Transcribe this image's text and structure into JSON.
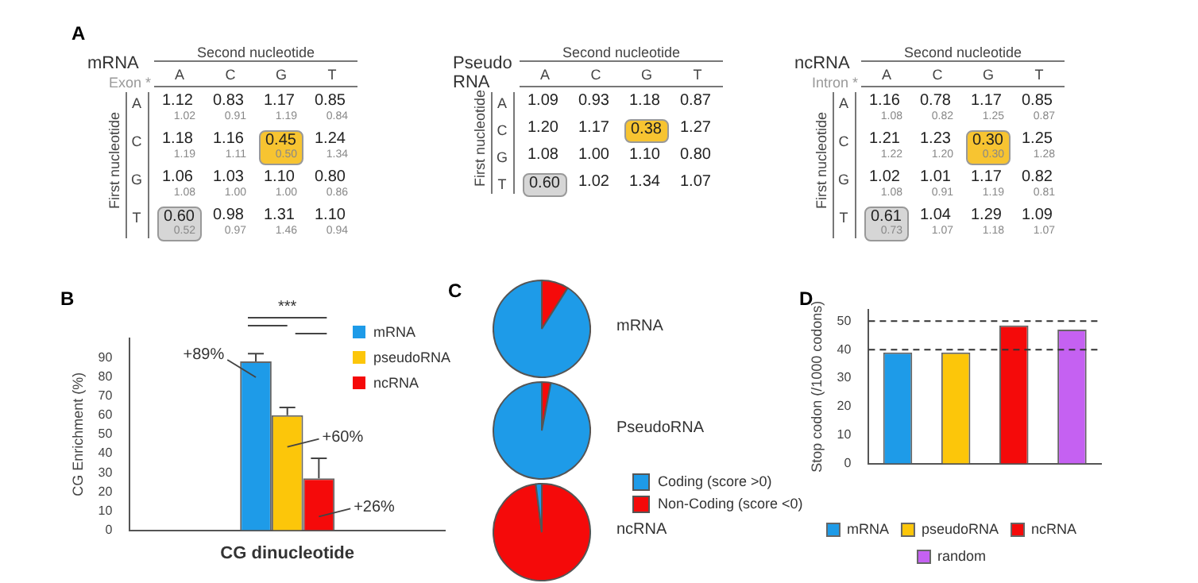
{
  "chart_data": [
    {
      "type": "heatmap",
      "title": "mRNA",
      "subtitle": "Exon *",
      "xlabel": "Second nucleotide",
      "ylabel": "First nucleotide",
      "annotations": [
        "A",
        "1.02",
        "0.91",
        "1.19",
        "0.84",
        "1.19",
        "1.11",
        "0.50",
        "1.34",
        "1.08",
        "1.00",
        "1.00",
        "0.86",
        "0.52",
        "0.97",
        "1.46",
        "0.94"
      ],
      "categories": [
        "A",
        "C",
        "G",
        "T"
      ],
      "y_categories": [
        "A",
        "C",
        "G",
        "T"
      ],
      "cells": [
        [
          1.12,
          0.83,
          1.17,
          0.85
        ],
        [
          1.18,
          1.16,
          0.45,
          1.24
        ],
        [
          1.06,
          1.03,
          1.1,
          0.8
        ],
        [
          0.6,
          0.98,
          1.31,
          1.1
        ]
      ],
      "cell_labels": [
        [
          "1.12",
          "0.83",
          "1.17",
          "0.85"
        ],
        [
          "1.18",
          "1.16",
          "0.45",
          "1.24"
        ],
        [
          "1.06",
          "1.03",
          "1.10",
          "0.80"
        ],
        [
          "0.60",
          "0.98",
          "1.31",
          "1.10"
        ]
      ],
      "colors": [
        [
          null,
          null,
          null,
          null
        ],
        [
          null,
          null,
          "#f7c431",
          null
        ],
        [
          null,
          null,
          null,
          null
        ],
        [
          "#d6d6d6",
          null,
          null,
          null
        ]
      ]
    },
    {
      "type": "heatmap",
      "title": "Pseudo RNA",
      "xlabel": "Second nucleotide",
      "ylabel": "First nucleotide",
      "categories": [
        "A",
        "C",
        "G",
        "T"
      ],
      "y_categories": [
        "A",
        "C",
        "G",
        "T"
      ],
      "cells": [
        [
          1.09,
          0.93,
          1.18,
          0.87
        ],
        [
          1.2,
          1.17,
          0.38,
          1.27
        ],
        [
          1.08,
          1.0,
          1.1,
          0.8
        ],
        [
          0.6,
          1.02,
          1.34,
          1.07
        ]
      ],
      "cell_labels": [
        [
          "1.09",
          "0.93",
          "1.18",
          "0.87"
        ],
        [
          "1.20",
          "1.17",
          "0.38",
          "1.27"
        ],
        [
          "1.08",
          "1.00",
          "1.10",
          "0.80"
        ],
        [
          "0.60",
          "1.02",
          "1.34",
          "1.07"
        ]
      ],
      "colors": [
        [
          null,
          null,
          null,
          null
        ],
        [
          null,
          null,
          "#f7c431",
          null
        ],
        [
          null,
          null,
          null,
          null
        ],
        [
          "#d6d6d6",
          null,
          null,
          null
        ]
      ]
    },
    {
      "type": "heatmap",
      "title": "ncRNA",
      "subtitle": "Intron *",
      "xlabel": "Second nucleotide",
      "ylabel": "First nucleotide",
      "annotations": [
        "1.08",
        "0.82",
        "1.25",
        "0.87",
        "1.22",
        "1.20",
        "0.30",
        "1.28",
        "1.08",
        "0.91",
        "1.19",
        "0.81",
        "0.73",
        "1.07",
        "1.18",
        "1.07"
      ],
      "categories": [
        "A",
        "C",
        "G",
        "T"
      ],
      "y_categories": [
        "A",
        "C",
        "G",
        "T"
      ],
      "cells": [
        [
          1.16,
          0.78,
          1.17,
          0.85
        ],
        [
          1.21,
          1.23,
          0.3,
          1.25
        ],
        [
          1.02,
          1.01,
          1.17,
          0.82
        ],
        [
          0.61,
          1.04,
          1.29,
          1.09
        ]
      ],
      "cell_labels": [
        [
          "1.16",
          "0.78",
          "1.17",
          "0.85"
        ],
        [
          "1.21",
          "1.23",
          "0.30",
          "1.25"
        ],
        [
          "1.02",
          "1.01",
          "1.17",
          "0.82"
        ],
        [
          "0.61",
          "1.04",
          "1.29",
          "1.09"
        ]
      ],
      "colors": [
        [
          null,
          null,
          null,
          null
        ],
        [
          null,
          null,
          "#f7c431",
          null
        ],
        [
          null,
          null,
          null,
          null
        ],
        [
          "#d6d6d6",
          null,
          null,
          null
        ]
      ]
    },
    {
      "type": "bar",
      "ylabel": "CG Enrichment (%)",
      "annotations": [
        "B",
        "+89%",
        "+60%",
        "+26%",
        "***"
      ],
      "categories": [
        "CG dinucleotide"
      ],
      "ylim": [
        0,
        100
      ],
      "yticks": [
        0,
        10,
        20,
        30,
        40,
        50,
        60,
        70,
        80,
        90
      ],
      "grid": false,
      "legend": "top right",
      "series": [
        {
          "name": "mRNA",
          "color": "#1e9be8",
          "values": [
            88
          ],
          "errors": [
            4
          ]
        },
        {
          "name": "pseudoRNA",
          "color": "#fcc60a",
          "values": [
            60
          ],
          "errors": [
            4
          ]
        },
        {
          "name": "ncRNA",
          "color": "#f50a0a",
          "values": [
            27
          ],
          "errors": [
            10.5
          ]
        }
      ]
    },
    {
      "type": "pie",
      "title": "mRNA",
      "annotations": [
        "C"
      ],
      "categories": [
        null,
        null
      ],
      "values": [
        9,
        91
      ],
      "colors": [
        "#f50a0a",
        "#1e9be8"
      ],
      "legend": false
    },
    {
      "type": "pie",
      "title": "PseudoRNA",
      "categories": [
        "Non-Coding (score <0)",
        "Coding (score >0)"
      ],
      "values": [
        3,
        97
      ],
      "colors": [
        "#f50a0a",
        "#1e9be8"
      ],
      "legend": "right"
    },
    {
      "type": "pie",
      "title": "ncRNA",
      "categories": [
        null,
        null
      ],
      "values": [
        98,
        2
      ],
      "colors": [
        "#f50a0a",
        "#1e9be8"
      ],
      "legend": false
    },
    {
      "type": "bar",
      "ylabel": "Stop codon (/1000 codons)",
      "annotations": [
        "D"
      ],
      "categories": [
        null,
        null,
        null,
        null
      ],
      "ylim": [
        0,
        54
      ],
      "yticks": [
        0,
        10,
        20,
        30,
        40,
        50
      ],
      "grid": false,
      "legend": "bottom",
      "ref_lines": [
        {
          "axis": "y",
          "value": 40,
          "line_style": "dashed"
        },
        {
          "axis": "y",
          "value": 50,
          "line_style": "dashed"
        }
      ],
      "series": [
        {
          "name": "mRNA",
          "color": "#1e9be8",
          "values": [
            39,
            null,
            null,
            null
          ]
        },
        {
          "name": "pseudoRNA",
          "color": "#fcc60a",
          "values": [
            null,
            39,
            null,
            null
          ]
        },
        {
          "name": "ncRNA",
          "color": "#f50a0a",
          "values": [
            null,
            null,
            48.5,
            null
          ]
        },
        {
          "name": "random",
          "color": "#c561f2",
          "values": [
            null,
            null,
            null,
            47
          ]
        }
      ]
    }
  ]
}
